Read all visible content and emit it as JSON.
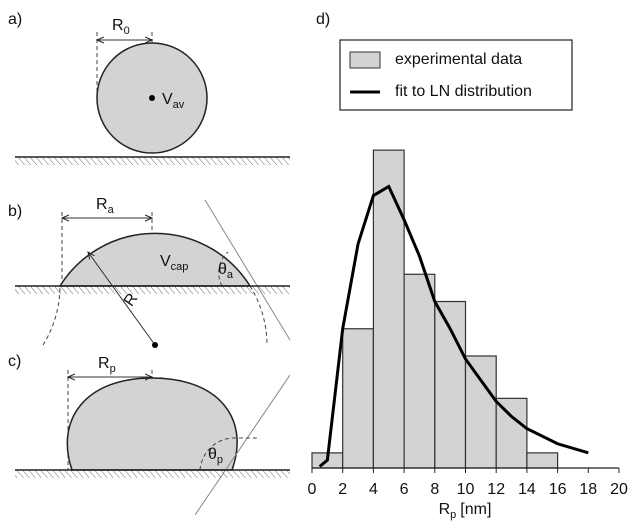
{
  "diagrams": {
    "a": {
      "panel": "a)",
      "radius": [
        "R",
        "0"
      ],
      "volume": [
        "V",
        "av"
      ]
    },
    "b": {
      "panel": "b)",
      "radius": [
        "R",
        "a"
      ],
      "volume": [
        "V",
        "cap"
      ],
      "angle": [
        "θ",
        "a"
      ],
      "curvature": "R"
    },
    "c": {
      "panel": "c)",
      "radius": [
        "R",
        "p"
      ],
      "angle": [
        "θ",
        "p"
      ]
    }
  },
  "chart_data": {
    "type": "histogram",
    "panel": "d)",
    "x_label": {
      "symbol": "R",
      "sub": "p",
      "unit": "[nm]"
    },
    "bins": [
      0,
      2,
      4,
      6,
      8,
      10,
      12,
      14,
      16
    ],
    "series": [
      {
        "name": "experimental data",
        "color": "#d3d3d3",
        "values": [
          0.5,
          4.6,
          10.5,
          6.4,
          5.5,
          3.7,
          2.3,
          0.5
        ]
      },
      {
        "name": "fit to LN distribution",
        "type": "line",
        "color": "#000000",
        "x": [
          0.5,
          1,
          2,
          3,
          4,
          5,
          6,
          7,
          8,
          9,
          10,
          11,
          12,
          13,
          14,
          16,
          18
        ],
        "values": [
          0.05,
          0.26,
          4.6,
          7.4,
          9.0,
          9.3,
          8.2,
          7.0,
          5.5,
          4.6,
          3.6,
          2.9,
          2.2,
          1.7,
          1.3,
          0.8,
          0.5
        ]
      }
    ],
    "xlim": [
      0,
      20
    ],
    "xticks": [
      0,
      2,
      4,
      6,
      8,
      10,
      12,
      14,
      16,
      18,
      20
    ],
    "ylim": [
      0,
      11
    ],
    "legend": "top"
  }
}
